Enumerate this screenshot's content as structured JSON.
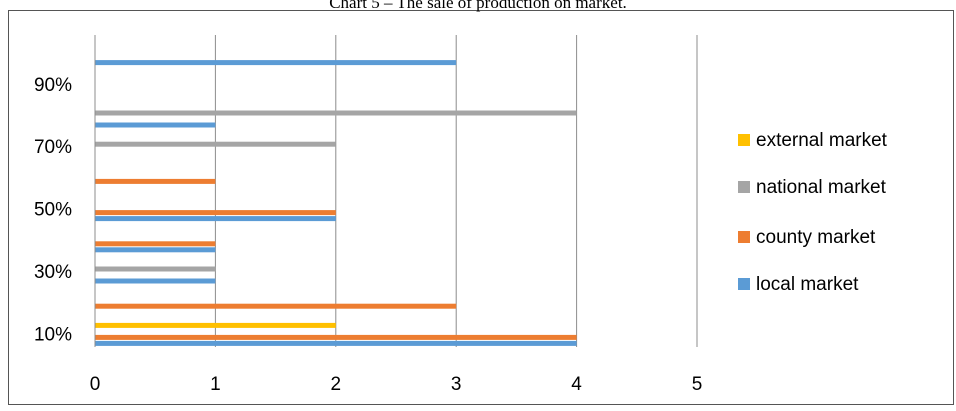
{
  "chart_data": {
    "type": "hbar",
    "title": "Chart 5 – The sale of production on market.",
    "categories": [
      "10%",
      null,
      "30%",
      null,
      "50%",
      null,
      "70%",
      null,
      "90%",
      null
    ],
    "series": [
      {
        "name": "local market",
        "color": "#5b9bd5",
        "values": [
          4,
          0,
          1,
          1,
          2,
          0,
          0,
          1,
          0,
          3
        ]
      },
      {
        "name": "county market",
        "color": "#ed7d31",
        "values": [
          4,
          3,
          0,
          1,
          2,
          1,
          0,
          0,
          0,
          0
        ]
      },
      {
        "name": "national market",
        "color": "#a5a5a5",
        "values": [
          0,
          0,
          1,
          0,
          0,
          0,
          2,
          4,
          0,
          0
        ]
      },
      {
        "name": "external market",
        "color": "#ffc000",
        "values": [
          2,
          0,
          0,
          0,
          0,
          0,
          0,
          0,
          0,
          0
        ]
      }
    ],
    "xlim": [
      0,
      5
    ],
    "xticks": [
      0,
      1,
      2,
      3,
      4,
      5
    ],
    "grid": true,
    "legend": "right"
  }
}
